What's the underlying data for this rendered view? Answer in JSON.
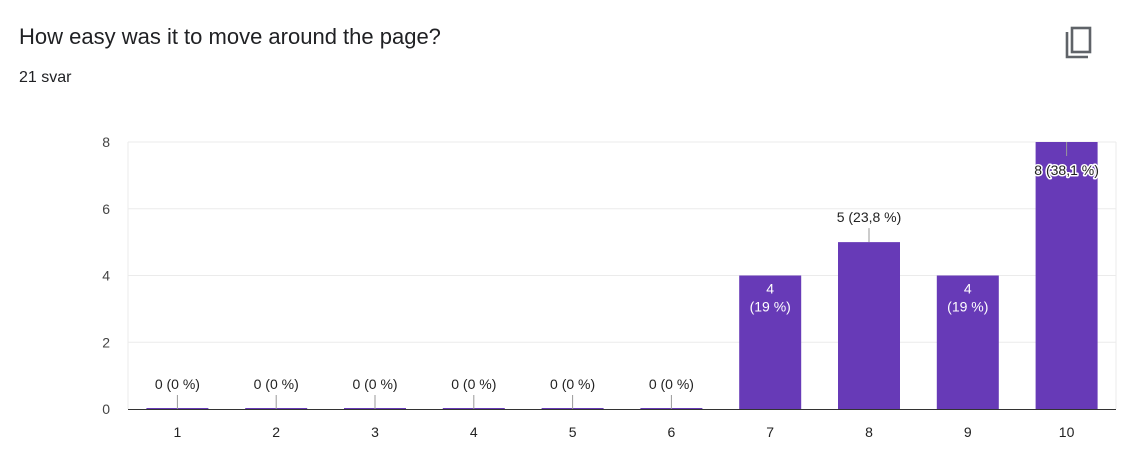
{
  "header": {
    "question_title": "How easy was it to move around the page?",
    "response_count": "21 svar",
    "copy_icon": "copy-icon"
  },
  "colors": {
    "bar": "#673ab7",
    "grid": "#ebebeb",
    "axis": "#333333",
    "label_on_bar": "#ffffff",
    "label_outside": "#222222"
  },
  "chart_data": {
    "type": "bar",
    "categories": [
      "1",
      "2",
      "3",
      "4",
      "5",
      "6",
      "7",
      "8",
      "9",
      "10"
    ],
    "values": [
      0,
      0,
      0,
      0,
      0,
      0,
      4,
      5,
      4,
      8
    ],
    "data_labels": [
      "0 (0 %)",
      "0 (0 %)",
      "0 (0 %)",
      "0 (0 %)",
      "0 (0 %)",
      "0 (0 %)",
      "4\n(19 %)",
      "5 (23,8 %)",
      "4\n(19 %)",
      "8 (38,1 %)"
    ],
    "title": "",
    "xlabel": "",
    "ylabel": "",
    "ylim": [
      0,
      8
    ],
    "yticks": [
      0,
      2,
      4,
      6,
      8
    ],
    "grid": true,
    "legend": "none"
  }
}
